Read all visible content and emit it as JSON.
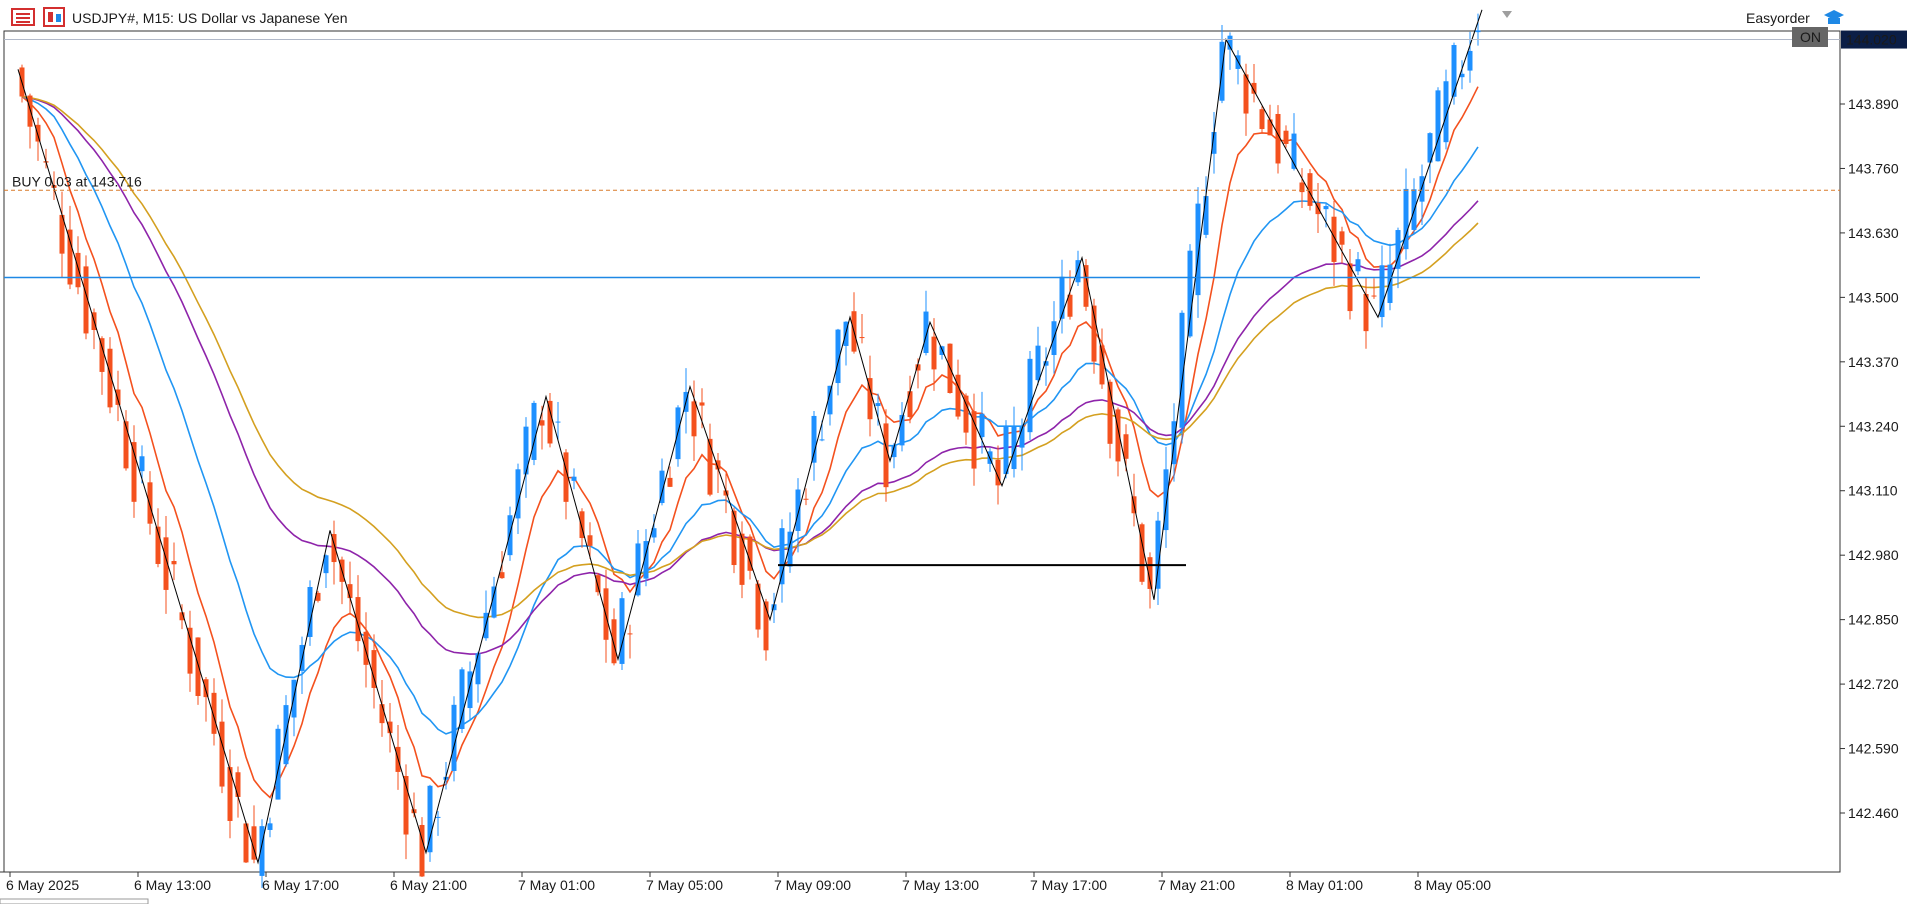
{
  "header": {
    "symbol_title": "USDJPY#, M15:  US Dollar vs Japanese Yen",
    "ea_name": "Easyorder",
    "ea_status": "ON"
  },
  "colors": {
    "bull": "#1e90ff",
    "bear": "#f4511e",
    "ema_fast": "#f4511e",
    "ema_mid": "#2196f3",
    "ema_slow": "#8e24aa",
    "ema_slowest": "#d4a020",
    "zigzag": "#000000",
    "hline": "#1e88e5",
    "position_line": "#d87a2a",
    "current_price_bg": "#0b1e46"
  },
  "trade": {
    "label": "BUY 0.03 at 143.716",
    "price": 143.716
  },
  "chart_data": {
    "type": "candlestick",
    "symbol": "USDJPY#",
    "timeframe": "M15",
    "ylim": [
      142.34,
      144.1
    ],
    "y_ticks": [
      "143.890",
      "143.760",
      "143.630",
      "143.500",
      "143.370",
      "143.240",
      "143.110",
      "142.980",
      "142.850",
      "142.720",
      "142.590",
      "142.460"
    ],
    "x_ticks": [
      "6 May 2025",
      "6 May 13:00",
      "6 May 17:00",
      "6 May 21:00",
      "7 May 01:00",
      "7 May 05:00",
      "7 May 09:00",
      "7 May 13:00",
      "7 May 17:00",
      "7 May 21:00",
      "8 May 01:00",
      "8 May 05:00"
    ],
    "current_price": "144.020",
    "horizontal_line": 143.54,
    "support_segment": {
      "price": 142.96,
      "from": "7 May 09:00",
      "to": "7 May 21:45"
    },
    "zigzag": [
      {
        "t": "6 May 09:15",
        "p": 143.96
      },
      {
        "t": "6 May 16:45",
        "p": 142.36
      },
      {
        "t": "6 May 19:00",
        "p": 143.03
      },
      {
        "t": "6 May 22:00",
        "p": 142.38
      },
      {
        "t": "7 May 01:45",
        "p": 143.3
      },
      {
        "t": "7 May 04:00",
        "p": 142.77
      },
      {
        "t": "7 May 06:15",
        "p": 143.32
      },
      {
        "t": "7 May 08:45",
        "p": 142.85
      },
      {
        "t": "7 May 11:15",
        "p": 143.46
      },
      {
        "t": "7 May 12:30",
        "p": 143.17
      },
      {
        "t": "7 May 13:45",
        "p": 143.45
      },
      {
        "t": "7 May 16:00",
        "p": 143.12
      },
      {
        "t": "7 May 18:30",
        "p": 143.58
      },
      {
        "t": "7 May 20:45",
        "p": 142.89
      },
      {
        "t": "7 May 23:00",
        "p": 144.02
      },
      {
        "t": "8 May 03:45",
        "p": 143.46
      },
      {
        "t": "8 May 07:00",
        "p": 144.08
      }
    ]
  }
}
